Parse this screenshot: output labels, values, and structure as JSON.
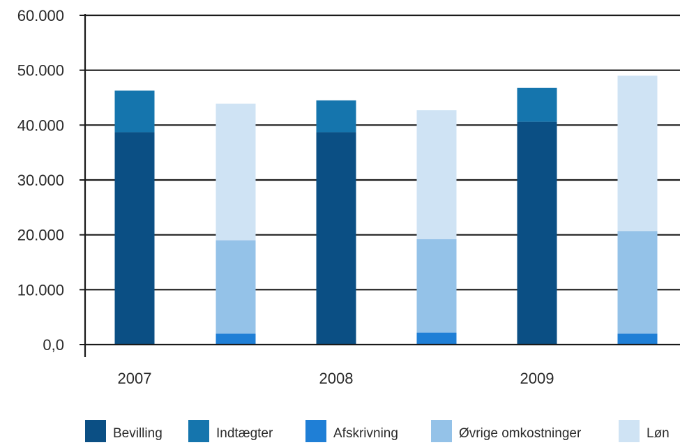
{
  "chart_data": {
    "type": "bar",
    "stacked": true,
    "grid": true,
    "legend_position": "bottom",
    "title": "",
    "xlabel": "",
    "ylabel": "",
    "ylim": [
      0,
      60000
    ],
    "ytick_values": [
      0,
      10000,
      20000,
      30000,
      40000,
      50000,
      60000
    ],
    "ytick_labels": [
      "0,0",
      "10.000",
      "20.000",
      "30.000",
      "40.000",
      "50.000",
      "60.000"
    ],
    "categories": [
      "2007",
      "2008",
      "2009"
    ],
    "stacks": [
      {
        "key": "income",
        "series": [
          "Bevilling",
          "Indtægter"
        ]
      },
      {
        "key": "expenses",
        "series": [
          "Afskrivning",
          "Øvrige omkostninger",
          "Løn"
        ]
      }
    ],
    "series": [
      {
        "name": "Bevilling",
        "stack": "income",
        "color": "#0b4f84",
        "values": [
          38700,
          38700,
          40600
        ]
      },
      {
        "name": "Indtægter",
        "stack": "income",
        "color": "#1575ad",
        "values": [
          7600,
          5800,
          6200
        ]
      },
      {
        "name": "Afskrivning",
        "stack": "expenses",
        "color": "#1f7fd6",
        "values": [
          2000,
          2200,
          2000
        ]
      },
      {
        "name": "Øvrige omkostninger",
        "stack": "expenses",
        "color": "#94c2e8",
        "values": [
          17000,
          17000,
          18700
        ]
      },
      {
        "name": "Løn",
        "stack": "expenses",
        "color": "#cfe3f4",
        "values": [
          24900,
          23500,
          28300
        ]
      }
    ]
  }
}
